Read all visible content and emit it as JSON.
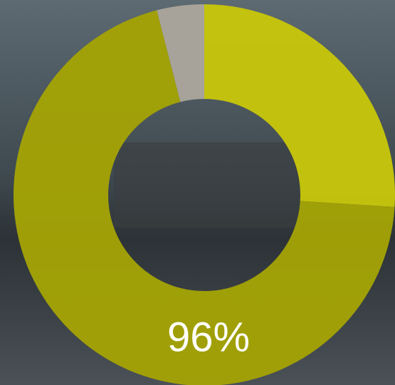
{
  "chart_data": {
    "type": "donut",
    "values": [
      26,
      70,
      4
    ],
    "colors": [
      "#c6c50b",
      "#a3a206",
      "#aaa59c"
    ],
    "center_label": "96%"
  }
}
